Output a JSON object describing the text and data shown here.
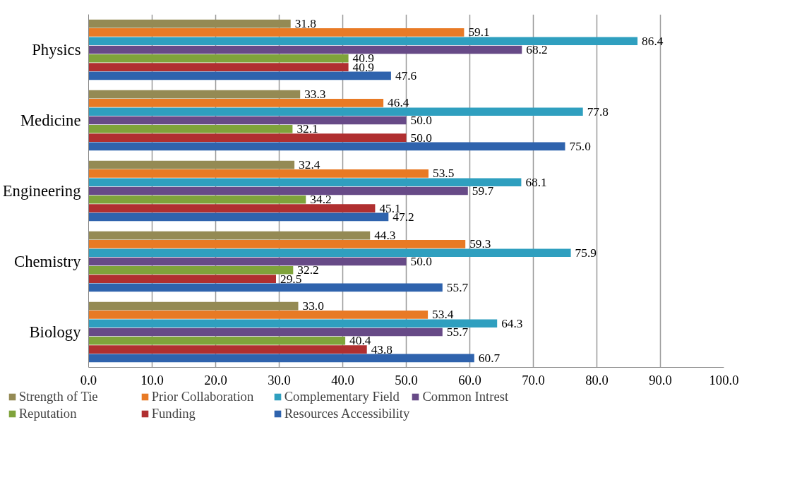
{
  "chart_data": {
    "type": "bar",
    "orientation": "horizontal",
    "categories": [
      "Physics",
      "Medicine",
      "Engineering",
      "Chemistry",
      "Biology"
    ],
    "series": [
      {
        "name": "Strength of Tie",
        "color": "#948a54",
        "values": [
          31.8,
          33.3,
          32.4,
          44.3,
          33.0
        ],
        "value_labels": [
          "31.8",
          "33.3",
          "32.4",
          "44.3",
          "33.0"
        ]
      },
      {
        "name": "Prior Collaboration",
        "color": "#e87a25",
        "values": [
          59.1,
          46.4,
          53.5,
          59.3,
          53.4
        ],
        "value_labels": [
          "59.1",
          "46.4",
          "53.5",
          "59.3",
          "53.4"
        ]
      },
      {
        "name": "Complementary Field",
        "color": "#2f9fbf",
        "values": [
          86.4,
          77.8,
          68.1,
          75.9,
          64.3
        ],
        "value_labels": [
          "86.4",
          "77.8",
          "68.1",
          "75.9",
          "64.3"
        ]
      },
      {
        "name": "Common Intrest",
        "color": "#674a87",
        "values": [
          68.2,
          50.0,
          59.7,
          50.0,
          55.7
        ],
        "value_labels": [
          "68.2",
          "50.0",
          "59.7",
          "50.0",
          "55.7"
        ]
      },
      {
        "name": "Reputation",
        "color": "#7fa33b",
        "values": [
          40.9,
          32.1,
          34.2,
          32.2,
          40.4
        ],
        "value_labels": [
          "40.9",
          "32.1",
          "34.2",
          "32.2",
          "40.4"
        ]
      },
      {
        "name": "Funding",
        "color": "#b02f30",
        "values": [
          40.9,
          50.0,
          45.1,
          29.5,
          43.8
        ],
        "value_labels": [
          "40.9",
          "50.0",
          "45.1",
          "29.5",
          "43.8"
        ]
      },
      {
        "name": "Resources Accessibility",
        "color": "#2f63ad",
        "values": [
          47.6,
          75.0,
          47.2,
          55.7,
          60.7
        ],
        "value_labels": [
          "47.6",
          "75.0",
          "47.2",
          "55.7",
          "60.7"
        ]
      }
    ],
    "xlim": [
      0,
      100
    ],
    "xticks": [
      {
        "value": 0,
        "label": "0.0"
      },
      {
        "value": 10,
        "label": "10.0"
      },
      {
        "value": 20,
        "label": "20.0"
      },
      {
        "value": 30,
        "label": "30.0"
      },
      {
        "value": 40,
        "label": "40.0"
      },
      {
        "value": 50,
        "label": "50.0"
      },
      {
        "value": 60,
        "label": "60.0"
      },
      {
        "value": 70,
        "label": "70.0"
      },
      {
        "value": 80,
        "label": "80.0"
      },
      {
        "value": 90,
        "label": "90.0"
      },
      {
        "value": 100,
        "label": "100.0"
      }
    ],
    "grid": "x",
    "legend": "bottom"
  }
}
